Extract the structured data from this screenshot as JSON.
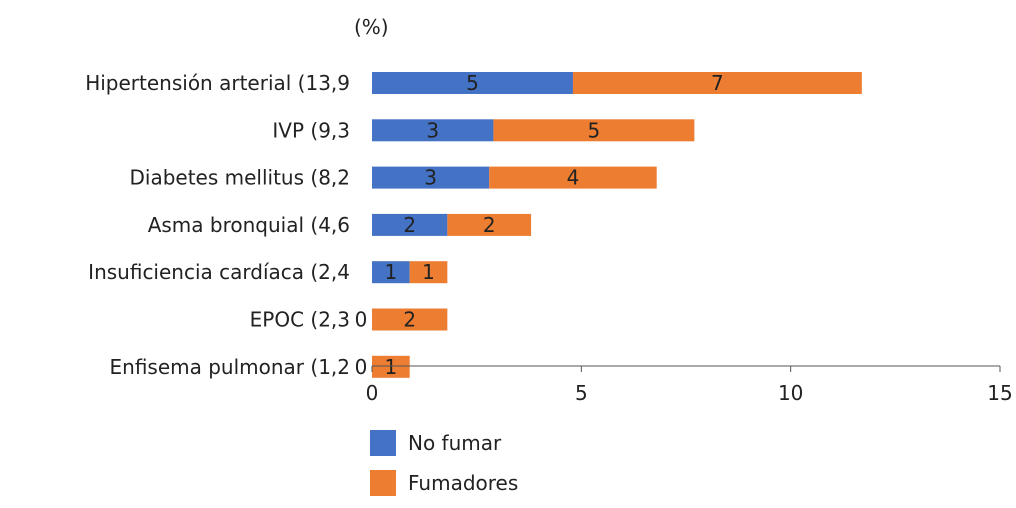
{
  "chart_data": {
    "type": "bar",
    "orientation": "horizontal",
    "stacked": true,
    "unit_label": "(%)",
    "categories": [
      "Hipertensión arterial (13,9",
      "IVP (9,3",
      "Diabetes mellitus (8,2",
      "Asma bronquial (4,6",
      "Insuficiencia cardíaca (2,4",
      "EPOC (2,3",
      "Enfisema pulmonar (1,2"
    ],
    "series": [
      {
        "name": "No fumar",
        "color": "#4472c4",
        "values": [
          4.8,
          2.9,
          2.8,
          1.8,
          0.9,
          0,
          0
        ],
        "labels": [
          "5",
          "3",
          "3",
          "2",
          "1",
          "0",
          "0"
        ]
      },
      {
        "name": "Fumadores",
        "color": "#ed7d31",
        "values": [
          6.9,
          4.8,
          4.0,
          2.0,
          0.9,
          1.8,
          0.9
        ],
        "labels": [
          "7",
          "5",
          "4",
          "2",
          "1",
          "2",
          "1"
        ]
      }
    ],
    "xlim": [
      0,
      15
    ],
    "xticks": [
      "0",
      "5",
      "10",
      "15"
    ],
    "grid": false,
    "legend_position": "bottom"
  }
}
